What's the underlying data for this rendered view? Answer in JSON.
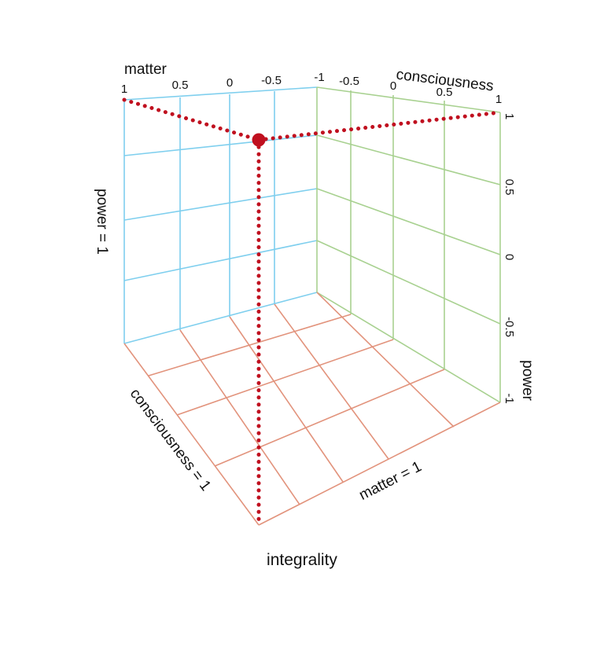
{
  "colors": {
    "left_wall_grid": "#7fcfee",
    "right_wall_grid": "#a8d190",
    "floor_grid": "#e2937c",
    "point_and_path": "#c0101f",
    "text": "#111111"
  },
  "labels": {
    "matter_axis_title": "matter",
    "consciousness_axis_title": "consciousness",
    "power_axis_title": "power",
    "left_wall_label": "power = 1",
    "floor_left_label": "consciousness = 1",
    "floor_right_label": "matter = 1",
    "bottom_corner_label": "integrality"
  },
  "ticks": {
    "matter": [
      "1",
      "0.5",
      "0",
      "-0.5",
      "-1"
    ],
    "consciousness": [
      "-0.5",
      "0",
      "0.5",
      "1"
    ],
    "power": [
      "1",
      "0.5",
      "0",
      "-0.5",
      "-1"
    ]
  },
  "point": {
    "matter": 0.25,
    "consciousness": -0.85,
    "power": 0.85
  }
}
